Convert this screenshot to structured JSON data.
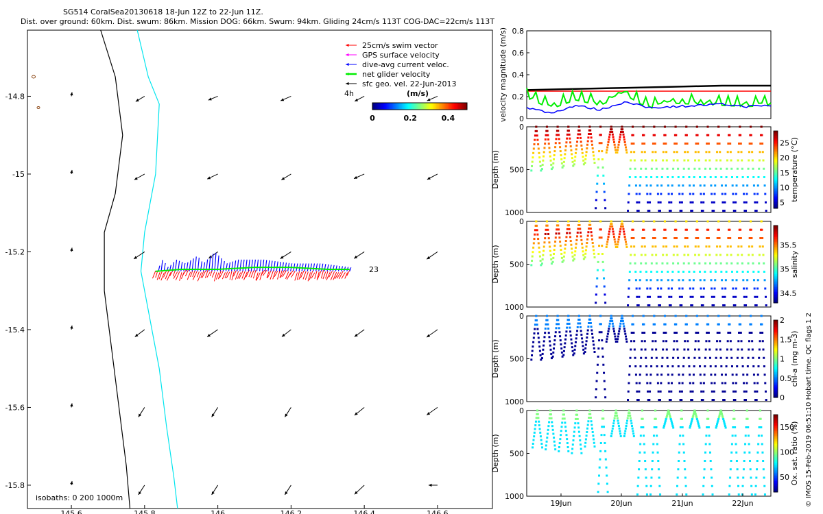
{
  "title": {
    "line1": "SG514 CoralSea20130618 18-Jun 12Z to 22-Jun 11Z.",
    "line2": "Dist. over ground: 60km. Dist. swum: 86km. Mission DOG: 66km. Swum: 94km. Gliding 24cm/s 113T COG-DAC=22cm/s 113T"
  },
  "footer": "© IMOS 15-Feb-2019 06:51:10 Hobart time. QC flags 1  2",
  "colors": {
    "swim": "#ff0000",
    "gps": "#ff00ff",
    "dac": "#0000ff",
    "net": "#00ee00",
    "sfc": "#000000",
    "isobath_200": "#000000",
    "isobath_1000": "#00e5ee"
  },
  "chart_data": [
    {
      "type": "scatter",
      "panel": "map",
      "xlim": [
        145.48,
        146.75
      ],
      "ylim": [
        -15.86,
        -14.63
      ],
      "xticks": [
        "145.6",
        "145.8",
        "146",
        "146.2",
        "146.4",
        "146.6"
      ],
      "yticks": [
        "-14.8",
        "-15",
        "-15.2",
        "-15.4",
        "-15.6",
        "-15.8"
      ],
      "legend": {
        "placement": "top-right",
        "entries": [
          "25cm/s swim vector",
          "GPS surface velocity",
          "dive-avg current veloc.",
          "net glider velocity",
          "sfc geo. vel. 22-Jun-2013"
        ]
      },
      "scale_label": "4h",
      "colorbar": {
        "label": "(m/s)",
        "ticks": [
          "0",
          "0.2",
          "0.4"
        ],
        "range": [
          0,
          0.5
        ]
      },
      "end_label": "23",
      "isobaths_label": "isobaths: 0   200   1000m",
      "track": {
        "x": [
          145.83,
          145.9,
          146.0,
          146.1,
          146.2,
          146.3,
          146.36
        ],
        "y": [
          -15.25,
          -15.245,
          -15.245,
          -15.24,
          -15.24,
          -15.245,
          -15.245
        ]
      },
      "sfc_velocity_grid": {
        "lon": [
          145.6,
          145.8,
          146.0,
          146.2,
          146.4,
          146.6
        ],
        "lat": [
          -14.8,
          -15.0,
          -15.2,
          -15.4,
          -15.6,
          -15.8
        ]
      }
    },
    {
      "type": "line",
      "panel": "velocity",
      "ylabel": "velocity magnitude (m/s)",
      "ylim": [
        0,
        0.8
      ],
      "yticks": [
        "0",
        "0.2",
        "0.4",
        "0.6",
        "0.8"
      ],
      "series": [
        {
          "name": "25cm/s swim vector",
          "y": [
            0.25,
            0.25
          ]
        },
        {
          "name": "sfc geo. vel. 22-Jun-2013",
          "y": [
            0.26,
            0.27,
            0.28,
            0.29,
            0.3,
            0.3
          ]
        },
        {
          "name": "dive-avg current veloc.",
          "y": [
            0.1,
            0.05,
            0.12,
            0.08,
            0.15,
            0.1,
            0.11,
            0.12,
            0.13,
            0.11,
            0.12
          ]
        },
        {
          "name": "net glider velocity",
          "y": [
            0.22,
            0.12,
            0.2,
            0.15,
            0.25,
            0.12,
            0.17,
            0.16,
            0.15,
            0.14,
            0.15
          ]
        }
      ]
    },
    {
      "type": "scatter",
      "panel": "temperature",
      "ylabel": "Depth (m)",
      "clabel": "temperature (°C)",
      "ylim": [
        1000,
        0
      ],
      "yticks": [
        "0",
        "500",
        "1000"
      ],
      "cticks": [
        "5",
        "10",
        "15",
        "20",
        "25"
      ],
      "crange": [
        3,
        29
      ]
    },
    {
      "type": "scatter",
      "panel": "salinity",
      "ylabel": "Depth (m)",
      "clabel": "salinity",
      "ylim": [
        1000,
        0
      ],
      "yticks": [
        "0",
        "500",
        "1000"
      ],
      "cticks": [
        "34.5",
        "35",
        "35.5"
      ],
      "crange": [
        34.3,
        35.9
      ]
    },
    {
      "type": "scatter",
      "panel": "chla",
      "ylabel": "Depth (m)",
      "clabel": "chl-a (mg m-3)",
      "ylim": [
        1000,
        0
      ],
      "yticks": [
        "0",
        "500",
        "1000"
      ],
      "cticks": [
        "0",
        "0.5",
        "1",
        "1.5",
        "2"
      ],
      "crange": [
        0,
        2
      ]
    },
    {
      "type": "scatter",
      "panel": "oxygen",
      "ylabel": "Depth (m)",
      "clabel": "Ox. sat. ratio (%)",
      "ylim": [
        1000,
        0
      ],
      "yticks": [
        "0",
        "500",
        "1000"
      ],
      "cticks": [
        "50",
        "100",
        "150"
      ],
      "crange": [
        20,
        175
      ],
      "xticks": [
        "19Jun",
        "20Jun",
        "21Jun",
        "22Jun"
      ]
    }
  ]
}
